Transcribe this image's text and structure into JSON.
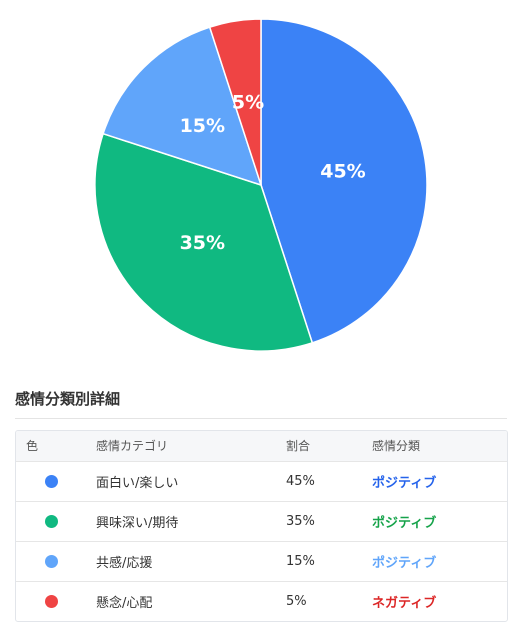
{
  "chart_data": {
    "type": "pie",
    "slices": [
      {
        "label": "面白い/楽しい",
        "value": 45,
        "color": "#3b82f6",
        "text": "45%"
      },
      {
        "label": "興味深い/期待",
        "value": 35,
        "color": "#10b981",
        "text": "35%"
      },
      {
        "label": "共感/応援",
        "value": 15,
        "color": "#60a5fa",
        "text": "15%"
      },
      {
        "label": "懸念/心配",
        "value": 5,
        "color": "#ef4444",
        "text": "5%"
      }
    ]
  },
  "details": {
    "title": "感情分類別詳細",
    "headers": {
      "color": "色",
      "category": "感情カテゴリ",
      "ratio": "割合",
      "classification": "感情分類"
    },
    "rows": [
      {
        "color": "#3b82f6",
        "category": "面白い/楽しい",
        "ratio": "45%",
        "classification": "ポジティブ",
        "classification_color": "#2563eb"
      },
      {
        "color": "#10b981",
        "category": "興味深い/期待",
        "ratio": "35%",
        "classification": "ポジティブ",
        "classification_color": "#16a34a"
      },
      {
        "color": "#60a5fa",
        "category": "共感/応援",
        "ratio": "15%",
        "classification": "ポジティブ",
        "classification_color": "#60a5fa"
      },
      {
        "color": "#ef4444",
        "category": "懸念/心配",
        "ratio": "5%",
        "classification": "ネガティブ",
        "classification_color": "#dc2626"
      }
    ]
  }
}
